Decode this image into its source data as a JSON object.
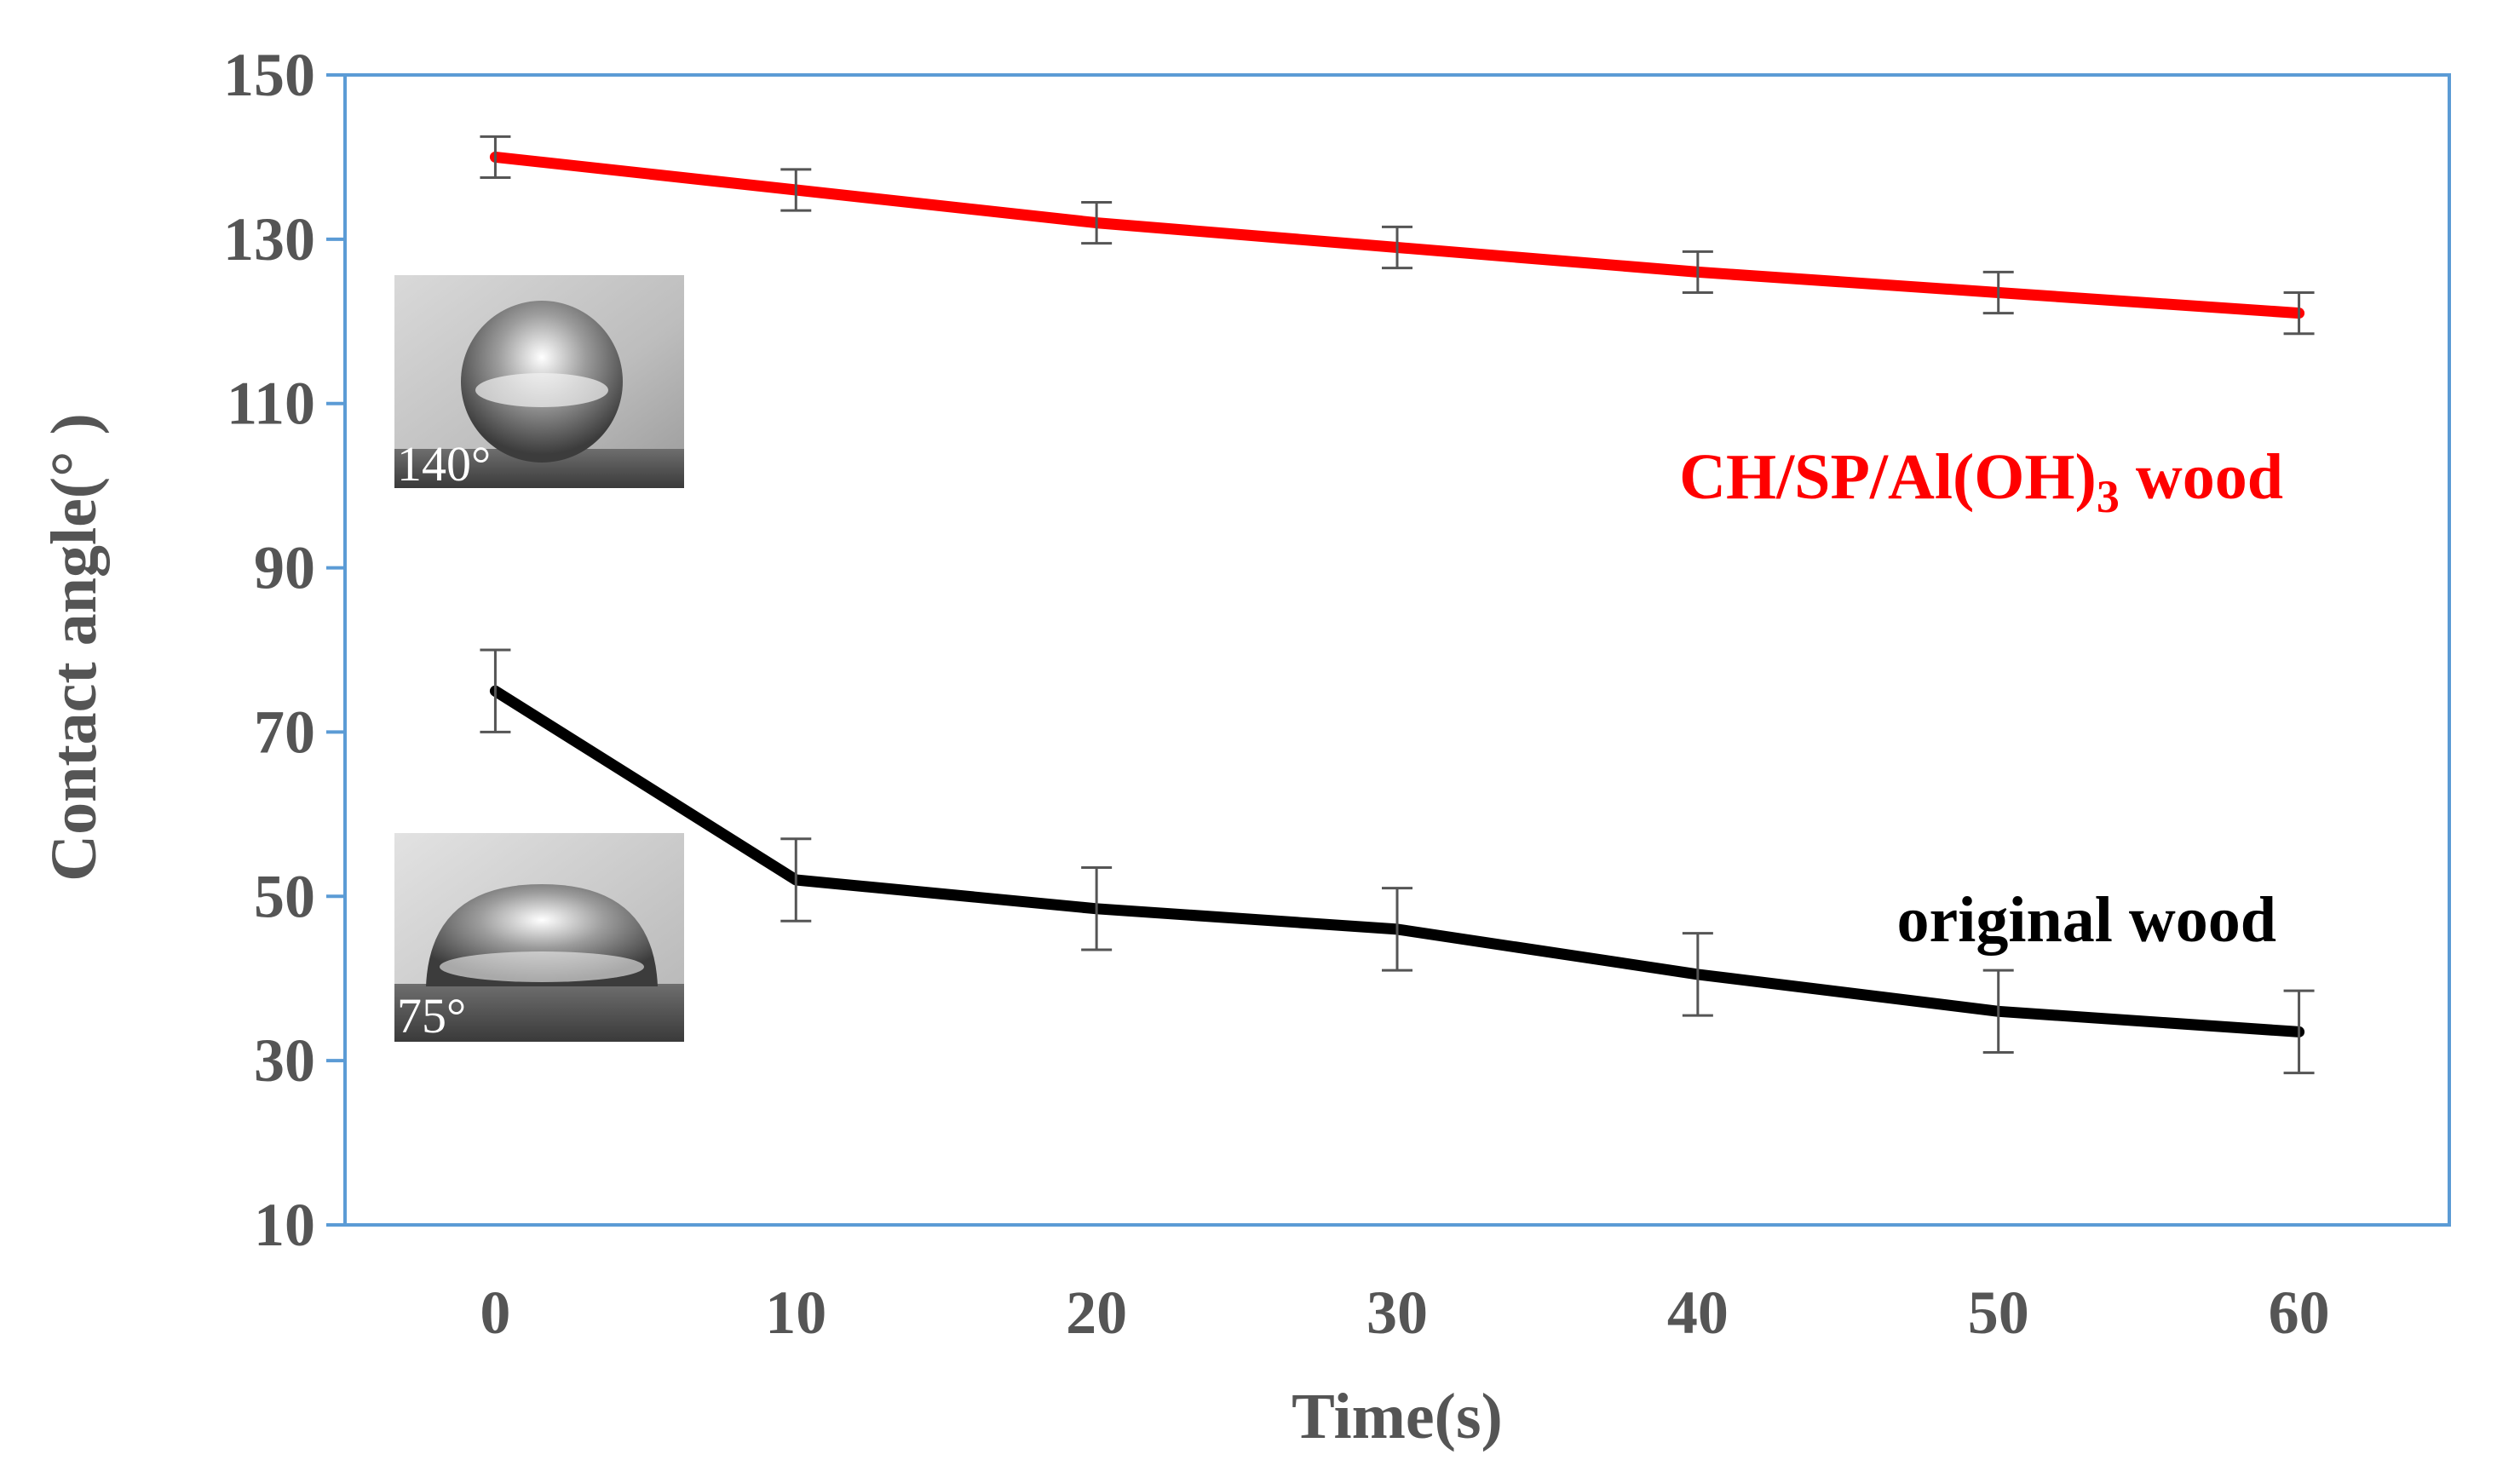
{
  "chart_data": {
    "type": "line",
    "title": "",
    "xlabel": "Time(s)",
    "ylabel": "Contact angle(° )",
    "x": [
      0,
      10,
      20,
      30,
      40,
      50,
      60
    ],
    "xlim": [
      -5,
      65
    ],
    "ylim": [
      10,
      150
    ],
    "yticks": [
      10,
      30,
      50,
      70,
      90,
      110,
      130,
      150
    ],
    "series": [
      {
        "name": "CH/SP/Al(OH)3 wood",
        "label_main": "CH/SP/Al(OH)",
        "label_sub": "3",
        "label_tail": " wood",
        "color": "#ff0000",
        "values": [
          140,
          136,
          132,
          129,
          126,
          123.5,
          121
        ],
        "errors": [
          2.5,
          2.5,
          2.5,
          2.5,
          2.5,
          2.5,
          2.5
        ]
      },
      {
        "name": "original wood",
        "color": "#000000",
        "values": [
          75,
          52,
          48.5,
          46,
          40.5,
          36,
          33.5
        ],
        "errors": [
          5,
          5,
          5,
          5,
          5,
          5,
          5
        ]
      }
    ],
    "insets": [
      {
        "label": "140°",
        "series": "CH/SP/Al(OH)3 wood"
      },
      {
        "label": "75°",
        "series": "original wood"
      }
    ],
    "axis_color": "#5b9bd5",
    "grid": false
  }
}
